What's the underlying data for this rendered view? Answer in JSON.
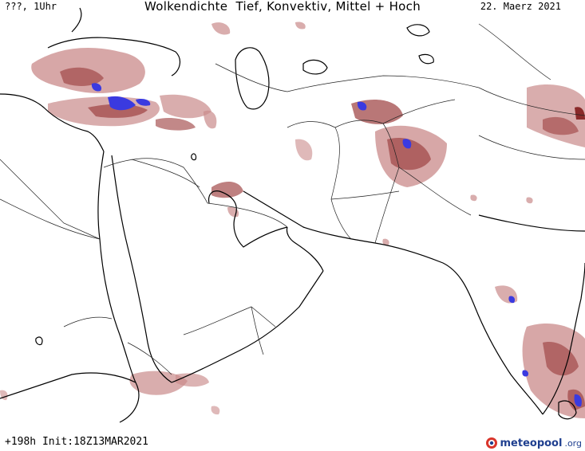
{
  "header": {
    "left": "???, 1Uhr",
    "title": "Wolkendichte  Tief, Konvektiv, Mittel + Hoch",
    "date": "22. Maerz 2021"
  },
  "footer": {
    "run": "+198h Init:18Z13MAR2021"
  },
  "logo": {
    "main": "meteopool",
    "suffix": ".org",
    "icon": "meteopool-globe-icon"
  },
  "colors": {
    "cloud_light": "#c98a8a",
    "cloud_medium": "#a85555",
    "cloud_dense": "#8a2a2a",
    "cloud_max": "#3a3ae0",
    "coast": "#000000",
    "border": "#222222"
  }
}
